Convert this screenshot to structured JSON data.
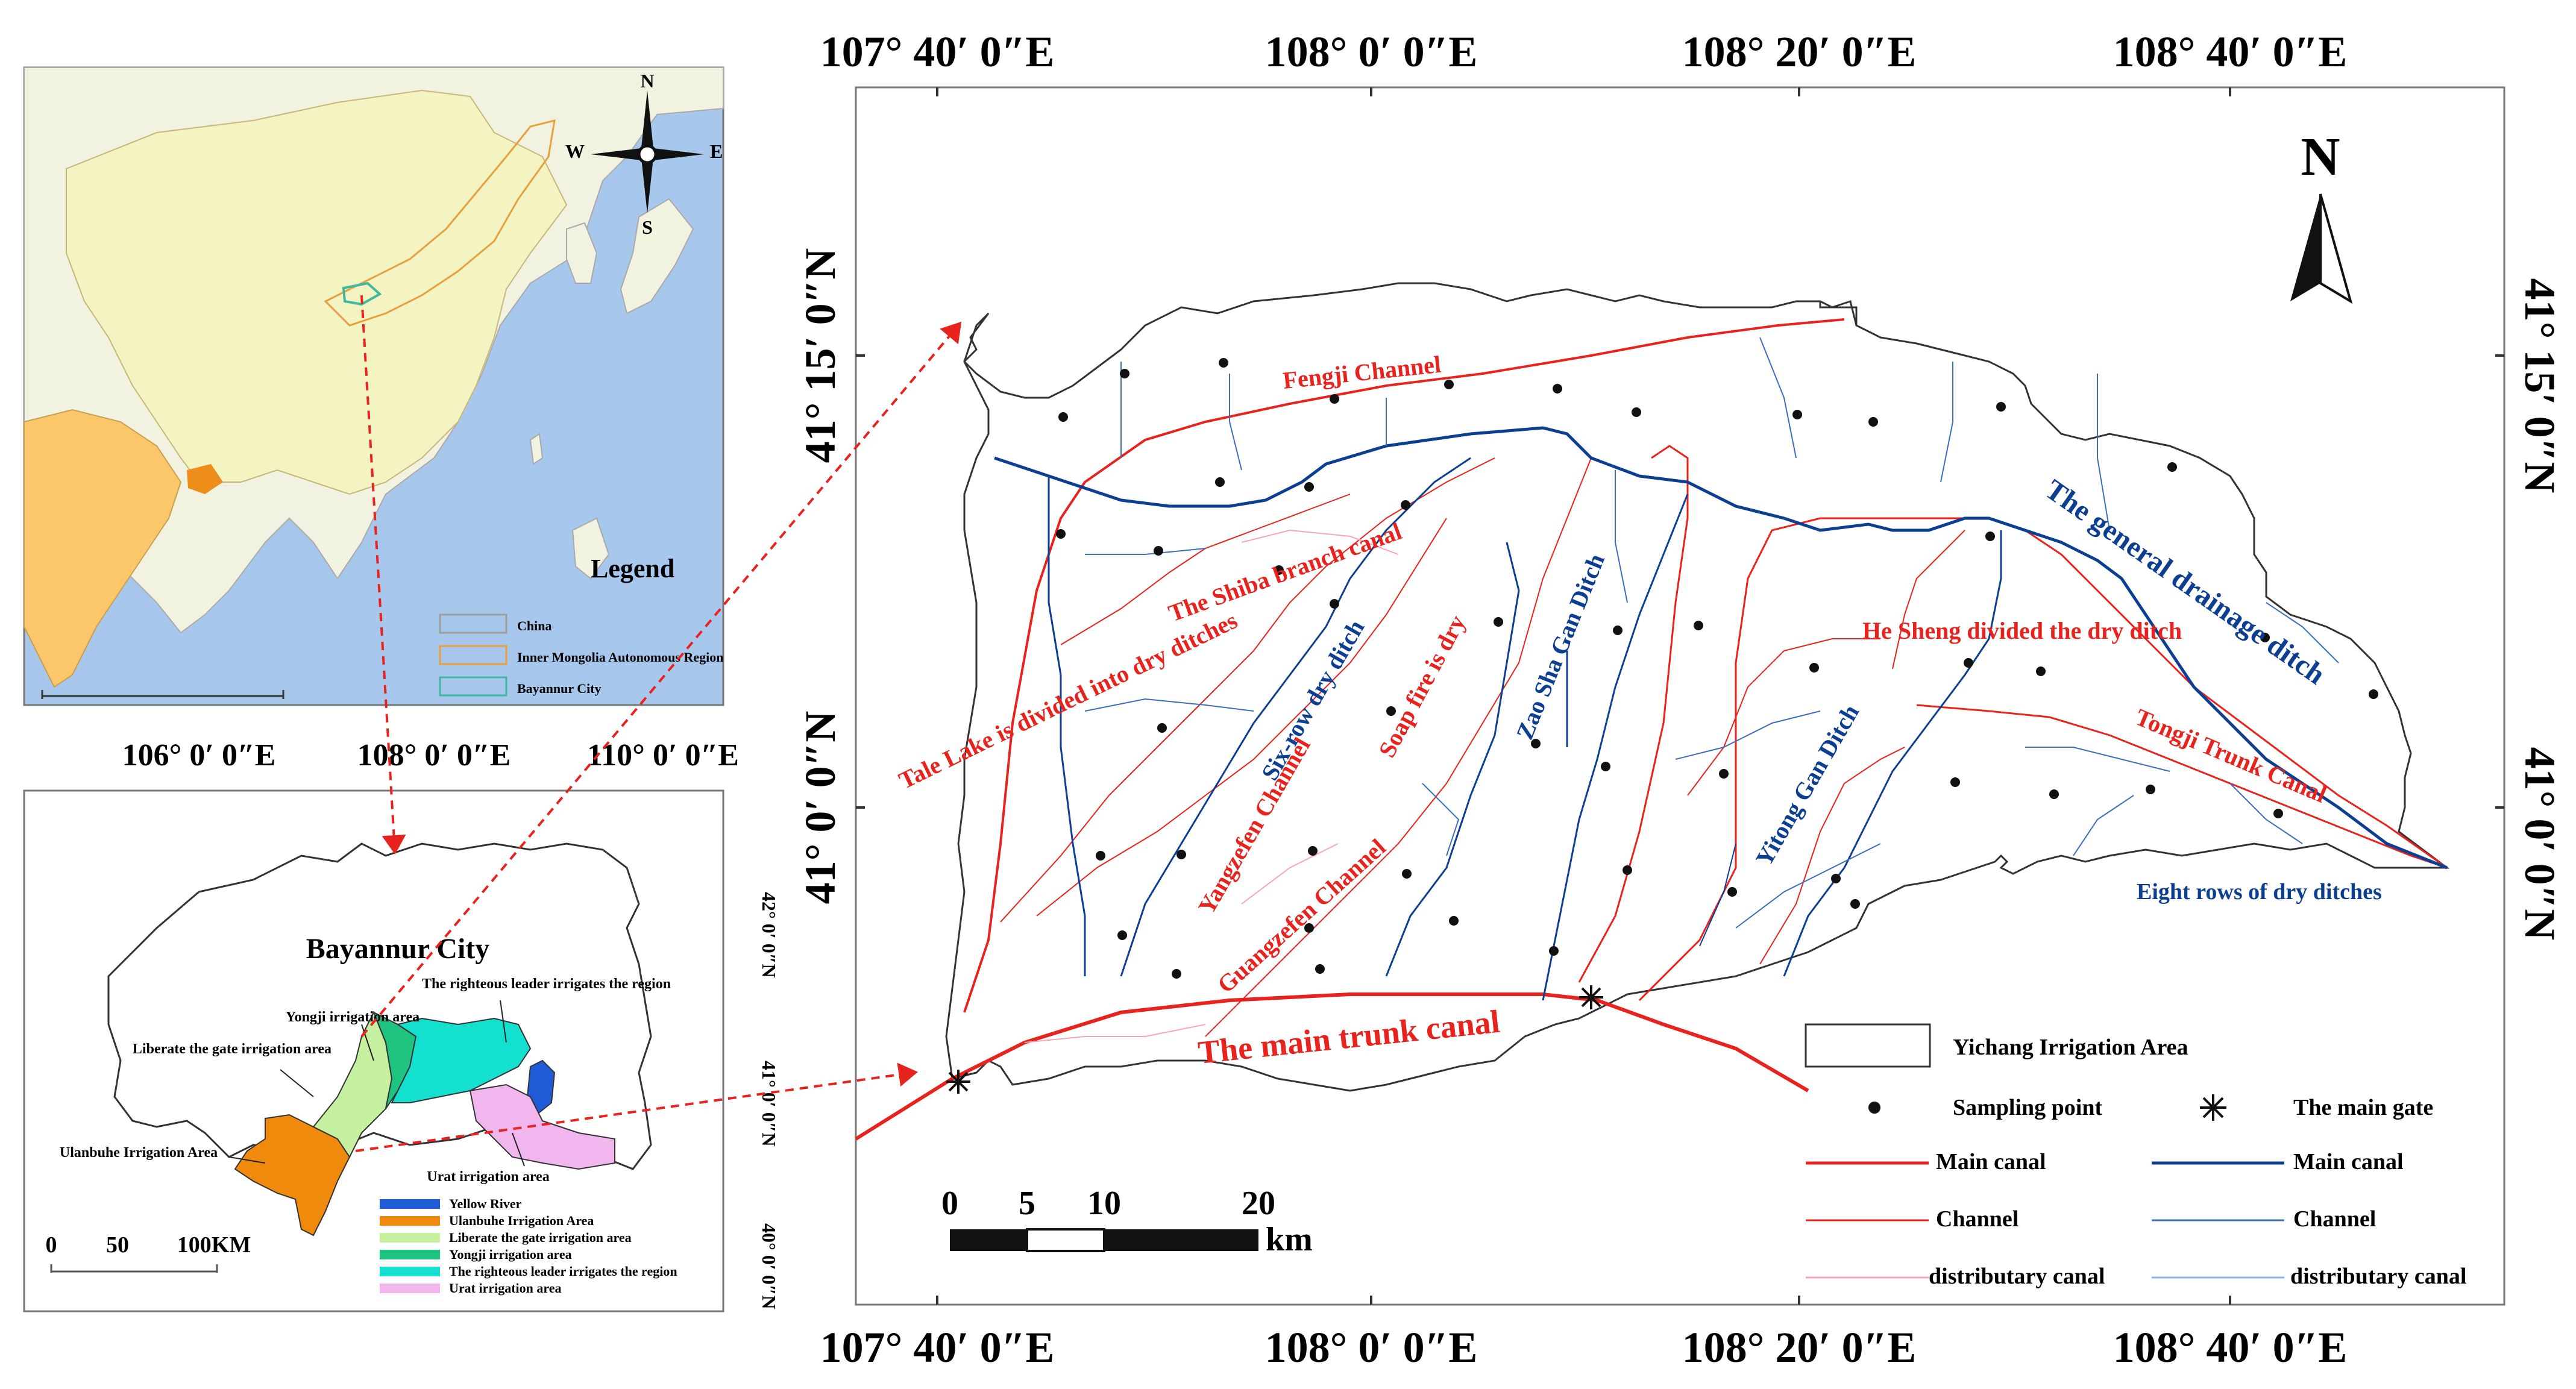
{
  "china_panel": {
    "compass": {
      "n": "N",
      "s": "S",
      "e": "E",
      "w": "W"
    },
    "legend_title": "Legend",
    "legend_items": [
      {
        "label": "China",
        "color": "#9e9e9e"
      },
      {
        "label": "Inner Mongolia Autonomous Region",
        "color": "#e8a03c"
      },
      {
        "label": "Bayannur City",
        "color": "#3fb8a0"
      }
    ],
    "lon_labels": [
      "106° 0′ 0″E",
      "108° 0′ 0″E",
      "110° 0′ 0″E"
    ]
  },
  "bayannur_panel": {
    "title": "Bayannur City",
    "areas": [
      {
        "label": "Yongji irrigation area"
      },
      {
        "label": "The righteous leader irrigates the region"
      },
      {
        "label": "Liberate the gate irrigation area"
      },
      {
        "label": "Ulanbuhe Irrigation Area"
      },
      {
        "label": "Urat irrigation area"
      }
    ],
    "legend": [
      {
        "label": "Yellow River",
        "color": "#1f5bd6"
      },
      {
        "label": "Ulanbuhe Irrigation Area",
        "color": "#f08a0c"
      },
      {
        "label": "Liberate the gate irrigation area",
        "color": "#c4f0a0"
      },
      {
        "label": "Yongji irrigation area",
        "color": "#1ec47f"
      },
      {
        "label": "The righteous leader irrigates the region",
        "color": "#14e0d0"
      },
      {
        "label": "Urat irrigation area",
        "color": "#f2b6ee"
      }
    ],
    "scale": [
      "0",
      "50",
      "100KM"
    ],
    "lat_labels": [
      "42° 0′ 0″N",
      "41° 0′ 0″N",
      "40° 0′ 0″N"
    ]
  },
  "main_map": {
    "lon_labels": [
      "107° 40′ 0″E",
      "108° 0′ 0″E",
      "108° 20′ 0″E",
      "108° 40′ 0″E"
    ],
    "lat_labels": [
      "41° 15′ 0″N",
      "41° 0′ 0″N"
    ],
    "north": "N",
    "scale": {
      "ticks": [
        "0",
        "5",
        "10",
        "20"
      ],
      "unit": "km"
    },
    "labels": {
      "fengji": "Fengji Channel",
      "shiba": "The Shiba branch canal",
      "tale": "Tale Lake is divided into dry ditches",
      "sixrow": "Six-row dry ditch",
      "soap": "Soap fire is dry",
      "zaosha": "Zao Sha Gan Ditch",
      "general": "The general drainage ditch",
      "hesheng": "He Sheng divided the dry ditch",
      "tongji": "Tongji Trunk Canal",
      "yitong": "Yitong Gan Ditch",
      "yangzefen": "Yangzefen Channel",
      "guangzefen": "Guangzefen Channel",
      "eightrows": "Eight rows of dry ditches",
      "maintrunk": "The main trunk canal"
    },
    "legend": {
      "area": "Yichang Irrigation Area",
      "sampling": "Sampling point",
      "gate": "The main gate",
      "red_main": "Main canal",
      "red_channel": "Channel",
      "red_distributary": "distributary canal",
      "blue_main": "Main canal",
      "blue_channel": "Channel",
      "blue_distributary": "distributary canal"
    }
  }
}
